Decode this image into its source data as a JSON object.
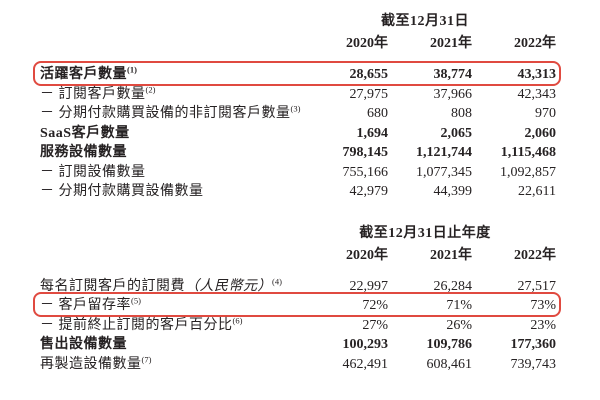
{
  "meta": {
    "highlight_border_color": "#e04a40",
    "text_color": "#262223",
    "background_color": "#ffffff"
  },
  "tables": [
    {
      "period_header": "截至12月31日",
      "years": [
        "2020年",
        "2021年",
        "2022年"
      ],
      "rows": [
        {
          "label": "活躍客戶數量",
          "sup": "(1)",
          "bold": true,
          "boxed": true,
          "values": [
            "28,655",
            "38,774",
            "43,313"
          ]
        },
        {
          "label": "－ 訂閱客戶數量",
          "sup": "(2)",
          "bold": false,
          "boxed": false,
          "values": [
            "27,975",
            "37,966",
            "42,343"
          ]
        },
        {
          "label": "－ 分期付款購買設備的非訂閱客戶數量",
          "sup": "(3)",
          "bold": false,
          "boxed": false,
          "values": [
            "680",
            "808",
            "970"
          ]
        },
        {
          "label": "SaaS客戶數量",
          "sup": "",
          "bold": true,
          "boxed": false,
          "values": [
            "1,694",
            "2,065",
            "2,060"
          ]
        },
        {
          "label": "服務設備數量",
          "sup": "",
          "bold": true,
          "boxed": false,
          "values": [
            "798,145",
            "1,121,744",
            "1,115,468"
          ]
        },
        {
          "label": "－ 訂閱設備數量",
          "sup": "",
          "bold": false,
          "boxed": false,
          "values": [
            "755,166",
            "1,077,345",
            "1,092,857"
          ]
        },
        {
          "label": "－ 分期付款購買設備數量",
          "sup": "",
          "bold": false,
          "boxed": false,
          "values": [
            "42,979",
            "44,399",
            "22,611"
          ]
        }
      ]
    },
    {
      "period_header": "截至12月31日止年度",
      "years": [
        "2020年",
        "2021年",
        "2022年"
      ],
      "rows": [
        {
          "label": "每名訂閱客戶的訂閱費",
          "label_italic": "（人民幣元）",
          "sup": "(4)",
          "bold": false,
          "boxed": false,
          "values": [
            "22,997",
            "26,284",
            "27,517"
          ]
        },
        {
          "label": "－ 客戶留存率",
          "sup": "(5)",
          "bold": false,
          "boxed": true,
          "values": [
            "72%",
            "71%",
            "73%"
          ]
        },
        {
          "label": "－ 提前終止訂閱的客戶百分比",
          "sup": "(6)",
          "bold": false,
          "boxed": false,
          "values": [
            "27%",
            "26%",
            "23%"
          ]
        },
        {
          "label": "售出設備數量",
          "sup": "",
          "bold": true,
          "boxed": false,
          "values": [
            "100,293",
            "109,786",
            "177,360"
          ]
        },
        {
          "label": "再製造設備數量",
          "sup": "(7)",
          "bold": false,
          "boxed": false,
          "values": [
            "462,491",
            "608,461",
            "739,743"
          ]
        }
      ]
    }
  ]
}
